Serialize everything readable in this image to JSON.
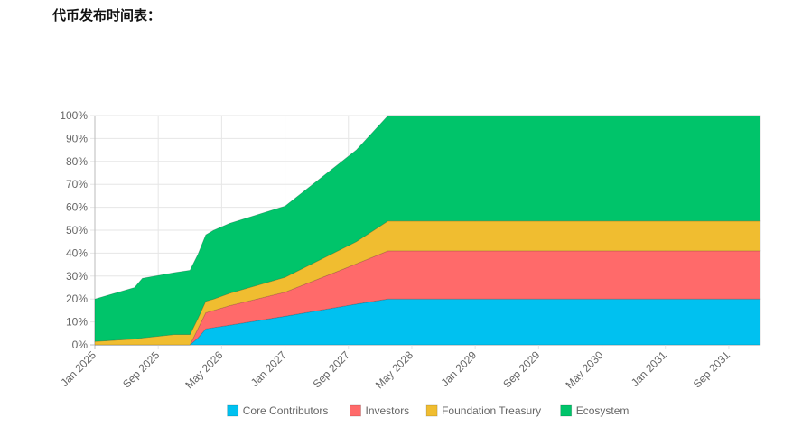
{
  "page": {
    "title": "代币发布时间表："
  },
  "chart_data": {
    "type": "area",
    "stacked": true,
    "title": "",
    "xlabel": "",
    "ylabel": "",
    "ylim": [
      0,
      100
    ],
    "yticks": [
      "0%",
      "10%",
      "20%",
      "30%",
      "40%",
      "50%",
      "60%",
      "70%",
      "80%",
      "90%",
      "100%"
    ],
    "xticks": [
      "Jan 2025",
      "Sep 2025",
      "May 2026",
      "Jan 2027",
      "Sep 2027",
      "May 2028",
      "Jan 2029",
      "Sep 2029",
      "May 2030",
      "Jan 2031",
      "Sep 2031"
    ],
    "grid": true,
    "legend_position": "bottom",
    "x_dates": [
      "2025-01",
      "2025-06",
      "2025-07",
      "2025-11",
      "2026-01",
      "2026-02",
      "2026-03",
      "2026-04",
      "2026-06",
      "2027-01",
      "2027-10",
      "2028-02",
      "2032-01"
    ],
    "series": [
      {
        "name": "Core Contributors",
        "color": "#00c1f0",
        "values": [
          0,
          0,
          0,
          0,
          0,
          3,
          7,
          7.5,
          8.6,
          12.5,
          17.8,
          20,
          20
        ]
      },
      {
        "name": "Investors",
        "color": "#ff6a6a",
        "values": [
          0,
          0,
          0,
          0,
          0,
          4,
          7,
          7.5,
          8.5,
          10.5,
          17.5,
          21,
          21
        ]
      },
      {
        "name": "Foundation Treasury",
        "color": "#f0bd30",
        "values": [
          1.5,
          2.5,
          3,
          4.5,
          4.5,
          4.5,
          5,
          5,
          5.4,
          6.5,
          9.7,
          13,
          13
        ]
      },
      {
        "name": "Ecosystem",
        "color": "#00c46a",
        "values": [
          18.5,
          22.5,
          26,
          27,
          28,
          28,
          29,
          30,
          30.5,
          31,
          40,
          46,
          46
        ]
      }
    ]
  }
}
